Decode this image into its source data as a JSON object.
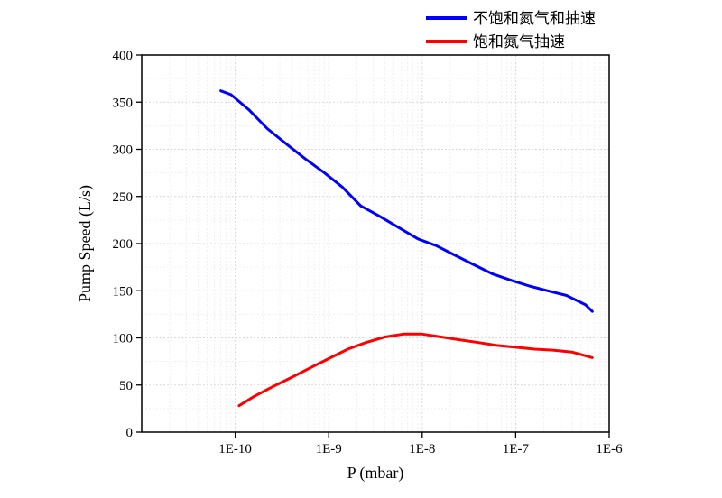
{
  "chart_data": {
    "type": "line",
    "title": "",
    "xlabel": "P (mbar)",
    "ylabel": "Pump Speed (L/s)",
    "x_scale": "log",
    "xlim": [
      1e-11,
      1e-06
    ],
    "ylim": [
      0,
      400
    ],
    "x_ticks": [
      {
        "value": 1e-10,
        "label": "1E-10"
      },
      {
        "value": 1e-09,
        "label": "1E-9"
      },
      {
        "value": 1e-08,
        "label": "1E-8"
      },
      {
        "value": 1e-07,
        "label": "1E-7"
      },
      {
        "value": 1e-06,
        "label": "1E-6"
      }
    ],
    "y_ticks": [
      {
        "value": 0,
        "label": "0"
      },
      {
        "value": 50,
        "label": "50"
      },
      {
        "value": 100,
        "label": "100"
      },
      {
        "value": 150,
        "label": "150"
      },
      {
        "value": 200,
        "label": "200"
      },
      {
        "value": 250,
        "label": "250"
      },
      {
        "value": 300,
        "label": "300"
      },
      {
        "value": 350,
        "label": "350"
      },
      {
        "value": 400,
        "label": "400"
      }
    ],
    "grid": true,
    "legend_position": "top-right",
    "series": [
      {
        "name": "不饱和氮气和抽速",
        "color": "#0000ff",
        "points": [
          [
            7e-11,
            362
          ],
          [
            9e-11,
            358
          ],
          [
            1.4e-10,
            342
          ],
          [
            2.2e-10,
            322
          ],
          [
            3.6e-10,
            305
          ],
          [
            5.6e-10,
            290
          ],
          [
            9e-10,
            275
          ],
          [
            1.4e-09,
            260
          ],
          [
            2.2e-09,
            240
          ],
          [
            3.5e-09,
            229
          ],
          [
            5.6e-09,
            217
          ],
          [
            9e-09,
            205
          ],
          [
            1.4e-08,
            198
          ],
          [
            2.2e-08,
            188
          ],
          [
            3.5e-08,
            178
          ],
          [
            5.6e-08,
            168
          ],
          [
            9e-08,
            161
          ],
          [
            1.4e-07,
            155
          ],
          [
            2.2e-07,
            150
          ],
          [
            3.5e-07,
            145
          ],
          [
            5.6e-07,
            135
          ],
          [
            6.6e-07,
            128
          ]
        ]
      },
      {
        "name": "饱和氮气抽速",
        "color": "#ff0000",
        "points": [
          [
            1.1e-10,
            28
          ],
          [
            1.6e-10,
            38
          ],
          [
            2.5e-10,
            48
          ],
          [
            4e-10,
            58
          ],
          [
            6.3e-10,
            68
          ],
          [
            1e-09,
            78
          ],
          [
            1.6e-09,
            88
          ],
          [
            2.5e-09,
            95
          ],
          [
            4e-09,
            101
          ],
          [
            6.3e-09,
            104
          ],
          [
            1e-08,
            104
          ],
          [
            1.6e-08,
            101
          ],
          [
            2.5e-08,
            98
          ],
          [
            4e-08,
            95
          ],
          [
            6.3e-08,
            92
          ],
          [
            1e-07,
            90
          ],
          [
            1.6e-07,
            88
          ],
          [
            2.5e-07,
            87
          ],
          [
            4e-07,
            85
          ],
          [
            6.6e-07,
            79
          ]
        ]
      }
    ]
  }
}
